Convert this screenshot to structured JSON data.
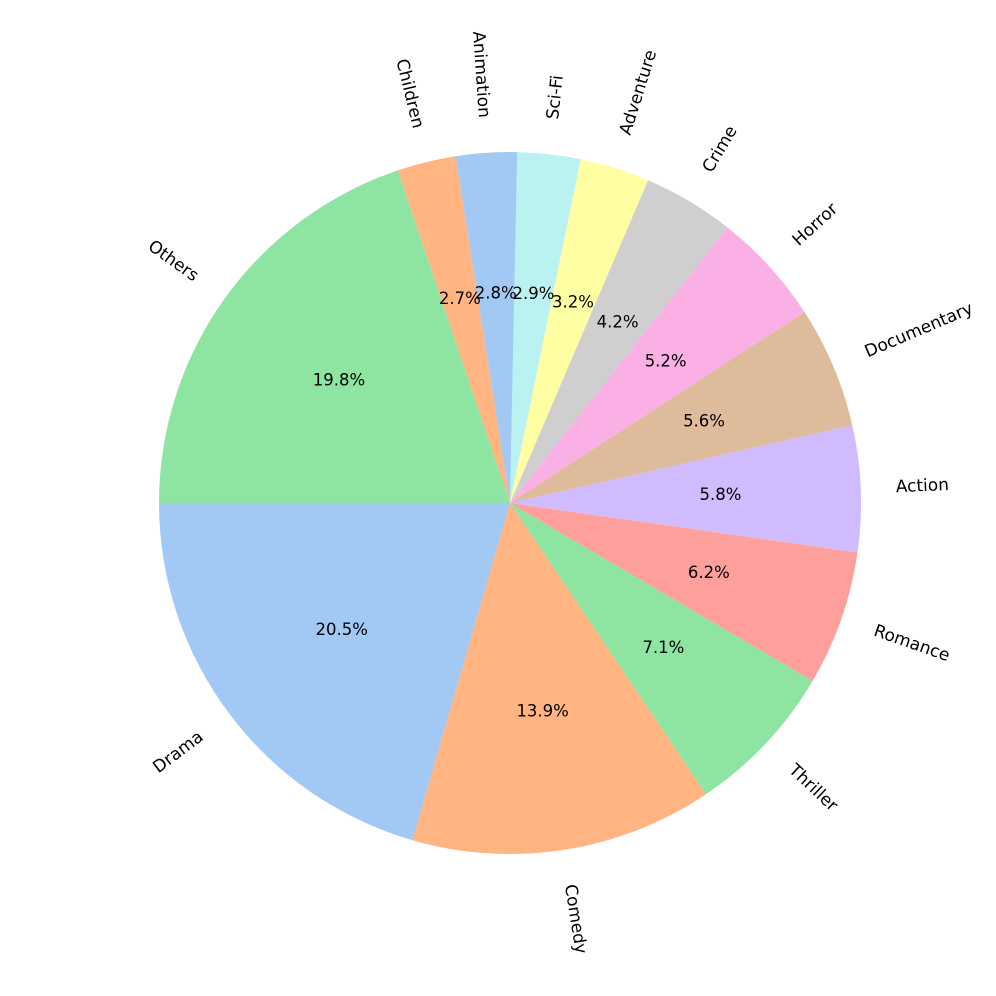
{
  "chart_data": {
    "type": "pie",
    "title": "",
    "start_angle_deg": 180,
    "direction": "counterclockwise",
    "rotated_labels": true,
    "slices": [
      {
        "label": "Drama",
        "value": 20.5,
        "pct_label": "20.5%",
        "color": "#a1c9f4"
      },
      {
        "label": "Comedy",
        "value": 13.9,
        "pct_label": "13.9%",
        "color": "#ffb482"
      },
      {
        "label": "Thriller",
        "value": 7.1,
        "pct_label": "7.1%",
        "color": "#8de5a1"
      },
      {
        "label": "Romance",
        "value": 6.2,
        "pct_label": "6.2%",
        "color": "#ff9f9b"
      },
      {
        "label": "Action",
        "value": 5.8,
        "pct_label": "5.8%",
        "color": "#d0bbff"
      },
      {
        "label": "Documentary",
        "value": 5.6,
        "pct_label": "5.6%",
        "color": "#debb9b"
      },
      {
        "label": "Horror",
        "value": 5.2,
        "pct_label": "5.2%",
        "color": "#fab0e4"
      },
      {
        "label": "Crime",
        "value": 4.2,
        "pct_label": "4.2%",
        "color": "#cfcfcf"
      },
      {
        "label": "Adventure",
        "value": 3.2,
        "pct_label": "3.2%",
        "color": "#fffea3"
      },
      {
        "label": "Sci-Fi",
        "value": 2.9,
        "pct_label": "2.9%",
        "color": "#b9f2f0"
      },
      {
        "label": "Animation",
        "value": 2.8,
        "pct_label": "2.8%",
        "color": "#a1c9f4"
      },
      {
        "label": "Children",
        "value": 2.7,
        "pct_label": "2.7%",
        "color": "#ffb482"
      },
      {
        "label": "Others",
        "value": 19.8,
        "pct_label": "19.8%",
        "color": "#8de5a1"
      }
    ]
  }
}
